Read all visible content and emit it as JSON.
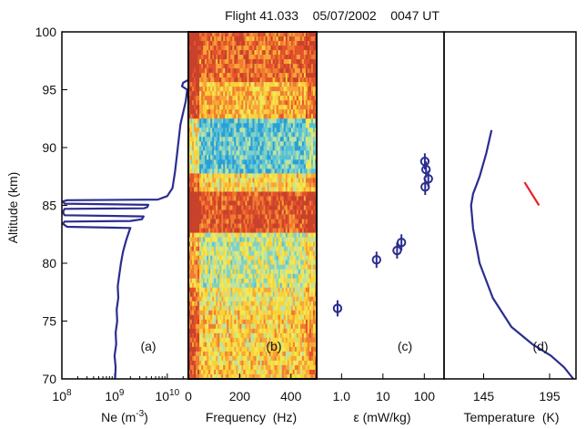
{
  "title": "Flight 41.033    05/07/2002    0047 UT",
  "ylabel": "Altitude  (km)",
  "colors": {
    "profile": "#2b2d8f",
    "marker": "#2b2d8f",
    "temp_segment": "#e8202a",
    "frame": "#000000"
  },
  "chart_data": [
    {
      "id": "a",
      "type": "line",
      "panel_label": "(a)",
      "xlabel": "Ne",
      "xlabel_unit": "(m",
      "xlabel_sup": "-3",
      "xlabel_close": ")",
      "xscale": "log",
      "xlim_exp": [
        8,
        10.4
      ],
      "ylim": [
        70,
        100
      ],
      "xticks": [
        {
          "exp": 8,
          "base": "10",
          "sup": "8"
        },
        {
          "exp": 9,
          "base": "10",
          "sup": "9"
        },
        {
          "exp": 10,
          "base": "10",
          "sup": "10"
        }
      ],
      "yticks": [
        "70",
        "75",
        "80",
        "85",
        "90",
        "95",
        "100"
      ],
      "series": [
        {
          "points": [
            [
              9.01,
              70.0
            ],
            [
              9.02,
              71.0
            ],
            [
              9.0,
              72.0
            ],
            [
              9.03,
              73.0
            ],
            [
              9.02,
              74.0
            ],
            [
              9.05,
              75.0
            ],
            [
              9.04,
              76.0
            ],
            [
              9.07,
              77.0
            ],
            [
              9.06,
              78.0
            ],
            [
              9.09,
              79.0
            ],
            [
              9.12,
              80.0
            ],
            [
              9.16,
              81.0
            ],
            [
              9.22,
              82.0
            ],
            [
              9.28,
              82.8
            ],
            [
              9.3,
              83.05
            ],
            [
              8.1,
              83.15
            ],
            [
              8.02,
              83.4
            ],
            [
              8.05,
              83.6
            ],
            [
              9.3,
              83.65
            ],
            [
              9.52,
              83.8
            ],
            [
              9.55,
              84.05
            ],
            [
              8.05,
              84.15
            ],
            [
              8.02,
              84.4
            ],
            [
              8.05,
              84.7
            ],
            [
              9.56,
              84.75
            ],
            [
              9.62,
              84.85
            ],
            [
              9.64,
              85.05
            ],
            [
              8.05,
              85.15
            ],
            [
              8.02,
              85.35
            ],
            [
              8.1,
              85.45
            ],
            [
              9.82,
              85.5
            ],
            [
              10.0,
              85.8
            ],
            [
              10.1,
              86.5
            ],
            [
              10.15,
              88.0
            ],
            [
              10.2,
              90.0
            ],
            [
              10.25,
              92.0
            ],
            [
              10.35,
              94.0
            ],
            [
              10.38,
              95.0
            ],
            [
              10.28,
              95.3
            ],
            [
              10.3,
              95.6
            ],
            [
              10.4,
              95.85
            ],
            [
              10.45,
              96.0
            ],
            [
              10.44,
              97.0
            ],
            [
              10.45,
              98.0
            ],
            [
              10.46,
              99.0
            ],
            [
              10.5,
              100.0
            ]
          ]
        }
      ]
    },
    {
      "id": "b",
      "type": "heatmap",
      "panel_label": "(b)",
      "xlabel": "Frequency  (Hz)",
      "xlim": [
        0,
        500
      ],
      "ylim": [
        70,
        100
      ],
      "xticks": [
        "0",
        "200",
        "400"
      ],
      "xtick_values": [
        0,
        200,
        400
      ],
      "palette": [
        "#2b9fd6",
        "#56bfd9",
        "#7fd1c6",
        "#bde3a3",
        "#f0e858",
        "#fbd236",
        "#f7a53a",
        "#f07b30",
        "#e3522b",
        "#c8412b"
      ],
      "bands": [
        {
          "y0": 70.0,
          "y1": 76.0,
          "level": 0.55
        },
        {
          "y0": 76.0,
          "y1": 78.0,
          "level": 0.48
        },
        {
          "y0": 78.0,
          "y1": 82.5,
          "level": 0.38
        },
        {
          "y0": 82.5,
          "y1": 86.2,
          "level": 0.86
        },
        {
          "y0": 86.2,
          "y1": 87.8,
          "level": 0.52
        },
        {
          "y0": 87.8,
          "y1": 92.5,
          "level": 0.18
        },
        {
          "y0": 92.5,
          "y1": 95.5,
          "level": 0.62
        },
        {
          "y0": 95.5,
          "y1": 100.0,
          "level": 0.78
        }
      ]
    },
    {
      "id": "c",
      "type": "scatter",
      "panel_label": "(c)",
      "xlabel": "ε (mW/kg)",
      "xscale": "log",
      "xlim": [
        0.25,
        300
      ],
      "ylim": [
        70,
        100
      ],
      "xticks": [
        "1.0",
        "10",
        "100"
      ],
      "xtick_values": [
        1,
        10,
        100
      ],
      "points": [
        {
          "x": 0.8,
          "y": 76.1,
          "err": 0.7
        },
        {
          "x": 7.0,
          "y": 80.3,
          "err": 0.7
        },
        {
          "x": 22.0,
          "y": 81.1,
          "err": 0.7
        },
        {
          "x": 28.0,
          "y": 81.8,
          "err": 0.7
        },
        {
          "x": 105.0,
          "y": 86.6,
          "err": 0.7
        },
        {
          "x": 125.0,
          "y": 87.3,
          "err": 0.7
        },
        {
          "x": 110.0,
          "y": 88.1,
          "err": 0.7
        },
        {
          "x": 103.0,
          "y": 88.8,
          "err": 0.7
        }
      ]
    },
    {
      "id": "d",
      "type": "line",
      "panel_label": "(d)",
      "xlabel": "Temperature  (K)",
      "xlim": [
        115,
        215
      ],
      "ylim": [
        70,
        100
      ],
      "xticks": [
        "145",
        "195"
      ],
      "xtick_values": [
        145,
        195
      ],
      "series": [
        {
          "points": [
            [
              151.0,
              91.5
            ],
            [
              147.0,
              89.5
            ],
            [
              142.0,
              87.5
            ],
            [
              137.0,
              86.0
            ],
            [
              135.5,
              85.0
            ],
            [
              137.0,
              83.0
            ],
            [
              142.0,
              80.0
            ],
            [
              152.0,
              77.0
            ],
            [
              166.0,
              74.5
            ],
            [
              182.0,
              73.0
            ],
            [
              196.0,
              72.0
            ],
            [
              206.0,
              71.0
            ],
            [
              213.0,
              70.0
            ]
          ]
        },
        {
          "points": [
            [
              176.0,
              87.0
            ],
            [
              187.0,
              85.0
            ]
          ]
        }
      ]
    }
  ]
}
